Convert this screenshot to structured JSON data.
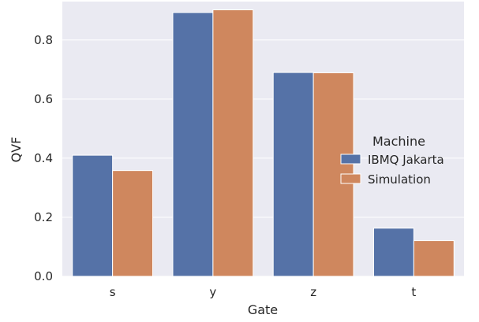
{
  "chart_data": {
    "type": "bar",
    "title": "",
    "xlabel": "Gate",
    "ylabel": "QVF",
    "categories": [
      "s",
      "y",
      "z",
      "t"
    ],
    "series": [
      {
        "name": "IBMQ Jakarta",
        "color": "#5572a7",
        "values": [
          0.41,
          0.893,
          0.69,
          0.163
        ]
      },
      {
        "name": "Simulation",
        "color": "#cf875e",
        "values": [
          0.358,
          0.902,
          0.689,
          0.121
        ]
      }
    ],
    "ylim": [
      0,
      0.93
    ],
    "yticks": [
      0.0,
      0.2,
      0.4,
      0.6,
      0.8
    ],
    "ytick_labels": [
      "0.0",
      "0.2",
      "0.4",
      "0.6",
      "0.8"
    ],
    "legend": {
      "title": "Machine",
      "placement": "center-right"
    },
    "grid": true,
    "background_color": "#eaeaf2"
  }
}
